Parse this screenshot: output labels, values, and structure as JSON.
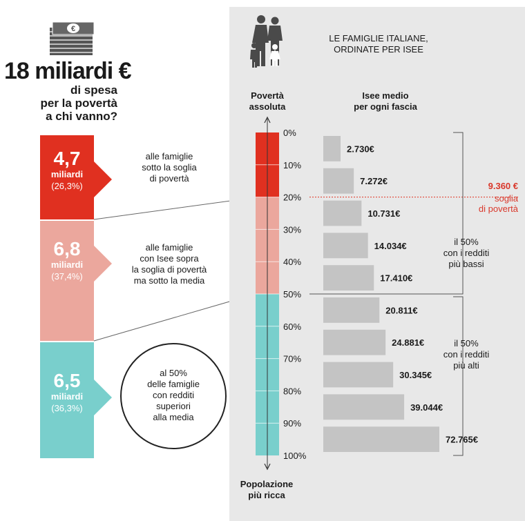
{
  "headline": {
    "amount": "18 miliardi €",
    "subtitle_lines": [
      "di spesa",
      "per la povertà",
      "a chi vanno?"
    ]
  },
  "categories": [
    {
      "value": "4,7",
      "unit": "miliardi",
      "pct": "(26,3%)",
      "color": "#e03020",
      "desc_lines": [
        "alle famiglie",
        "sotto la soglia",
        "di povertà"
      ]
    },
    {
      "value": "6,8",
      "unit": "miliardi",
      "pct": "(37,4%)",
      "color": "#eba79d",
      "desc_lines": [
        "alle famiglie",
        "con Isee sopra",
        "la soglia di povertà",
        "ma sotto la media"
      ]
    },
    {
      "value": "6,5",
      "unit": "miliardi",
      "pct": "(36,3%)",
      "color": "#79cfcc",
      "desc_lines": [
        "al 50%",
        "delle famiglie",
        "con redditi",
        "superiori",
        "alla media"
      ]
    }
  ],
  "panel": {
    "title_lines": [
      "LE FAMIGLIE ITALIANE,",
      "ORDINATE PER ISEE"
    ],
    "left_header_lines": [
      "Povertà",
      "assoluta"
    ],
    "right_header_lines": [
      "Isee medio",
      "per ogni fascia"
    ],
    "bottom_label_lines": [
      "Popolazione",
      "più ricca"
    ],
    "threshold": {
      "value": "9.360 €",
      "label_lines": [
        "soglia",
        "di povertà"
      ],
      "color": "#d9372a"
    },
    "brace_labels": [
      [
        "il 50%",
        "con i redditi",
        "più bassi"
      ],
      [
        "il 50%",
        "con i redditi",
        "più alti"
      ]
    ]
  },
  "chart_data": {
    "type": "bar",
    "ticks": [
      "0%",
      "10%",
      "20%",
      "30%",
      "40%",
      "50%",
      "60%",
      "70%",
      "80%",
      "90%",
      "100%"
    ],
    "values": [
      2730,
      7272,
      10731,
      14034,
      17410,
      20811,
      24881,
      30345,
      39044,
      72765
    ],
    "labels": [
      "2.730€",
      "7.272€",
      "10.731€",
      "14.034€",
      "17.410€",
      "20.811€",
      "24.881€",
      "30.345€",
      "39.044€",
      "72.765€"
    ],
    "segments": [
      {
        "from": 0,
        "to": 20,
        "color": "#e03020"
      },
      {
        "from": 20,
        "to": 50,
        "color": "#eba79d"
      },
      {
        "from": 50,
        "to": 100,
        "color": "#79cfcc"
      }
    ],
    "bar_color": "#c4c4c4",
    "threshold_value": 9360
  }
}
